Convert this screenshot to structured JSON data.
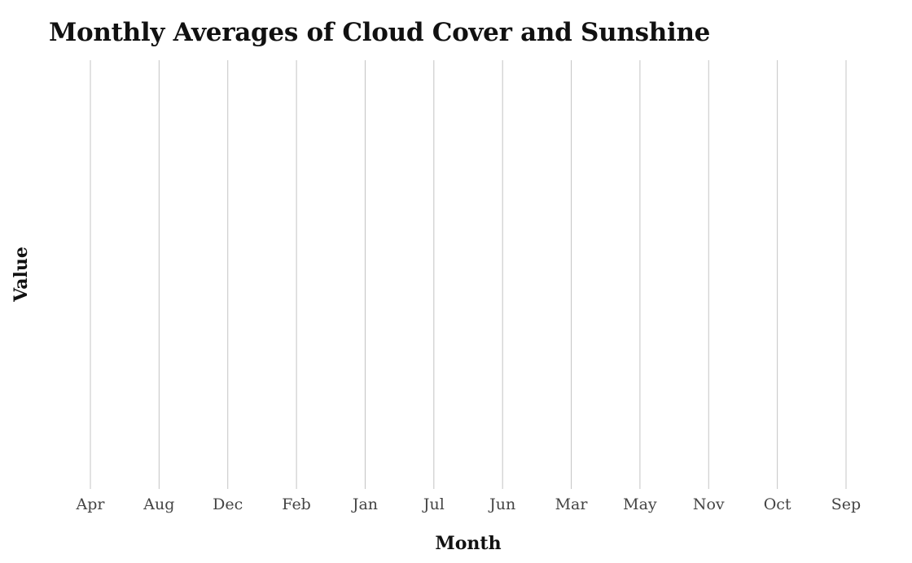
{
  "chart_data": {
    "type": "line",
    "title": "Monthly Averages of Cloud Cover and Sunshine",
    "xlabel": "Month",
    "ylabel": "Value",
    "categories": [
      "Apr",
      "Aug",
      "Dec",
      "Feb",
      "Jan",
      "Jul",
      "Jun",
      "Mar",
      "May",
      "Nov",
      "Oct",
      "Sep"
    ],
    "series": [],
    "grid": {
      "x": true,
      "y": false
    },
    "colors": {
      "grid": "#c4c4c4",
      "tick_text": "#444444",
      "title_text": "#111111"
    }
  }
}
